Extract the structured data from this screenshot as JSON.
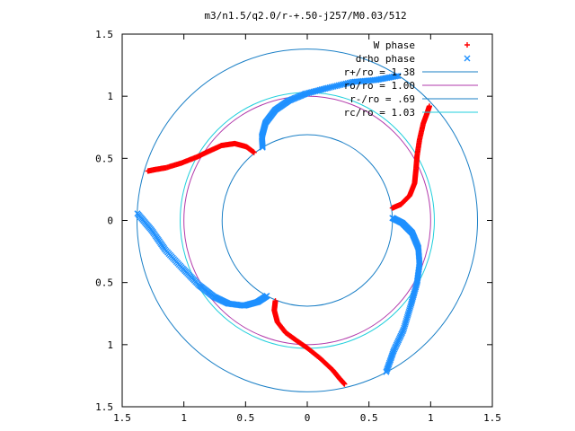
{
  "chart_data": {
    "type": "scatter",
    "title": "m3/n1.5/q2.0/r-+.50-j257/M0.03/512",
    "xlabel": "",
    "ylabel": "",
    "xlim": [
      -1.5,
      1.5
    ],
    "ylim": [
      -1.5,
      1.5
    ],
    "x_tick_values": [
      -1.5,
      -1,
      -0.5,
      0,
      0.5,
      1,
      1.5
    ],
    "x_tick_labels": [
      "1.5",
      "1",
      "0.5",
      "0",
      "0.5",
      "1",
      "1.5"
    ],
    "y_tick_values": [
      1.5,
      1,
      0.5,
      0,
      -0.5,
      -1,
      -1.5
    ],
    "y_tick_labels": [
      "1.5",
      "1",
      "0.5",
      "0",
      "0.5",
      "1",
      "1.5"
    ],
    "grid": false,
    "legend_position": "top-right",
    "series": [
      {
        "name": "W phase",
        "marker": "+",
        "color": "#ff0000",
        "points": [
          [
            0.69,
            0.1
          ],
          [
            0.76,
            0.13
          ],
          [
            0.83,
            0.2
          ],
          [
            0.87,
            0.3
          ],
          [
            0.88,
            0.4
          ],
          [
            0.89,
            0.52
          ],
          [
            0.91,
            0.65
          ],
          [
            0.94,
            0.78
          ],
          [
            0.97,
            0.86
          ],
          [
            0.99,
            0.92
          ]
        ]
      },
      {
        "name": "drho phase",
        "marker": "x",
        "color": "#1e90ff",
        "points": [
          [
            0.69,
            0.02
          ],
          [
            0.77,
            -0.02
          ],
          [
            0.85,
            -0.1
          ],
          [
            0.9,
            -0.22
          ],
          [
            0.91,
            -0.35
          ],
          [
            0.89,
            -0.5
          ],
          [
            0.84,
            -0.68
          ],
          [
            0.78,
            -0.88
          ],
          [
            0.7,
            -1.05
          ],
          [
            0.64,
            -1.22
          ]
        ]
      },
      {
        "name": "r+/ro = 1.38",
        "type": "circle",
        "color": "#1a7fc6",
        "radius": 1.38
      },
      {
        "name": "ro/ro = 1.00",
        "type": "circle",
        "color": "#b23aab",
        "radius": 1.0
      },
      {
        "name": "r-/ro = .69",
        "type": "circle",
        "color": "#1a7fc6",
        "radius": 0.69
      },
      {
        "name": "rc/ro = 1.03",
        "type": "circle",
        "color": "#21cfdc",
        "radius": 1.03
      }
    ]
  },
  "styles": {
    "frame_color": "#000000",
    "background": "#ffffff"
  }
}
